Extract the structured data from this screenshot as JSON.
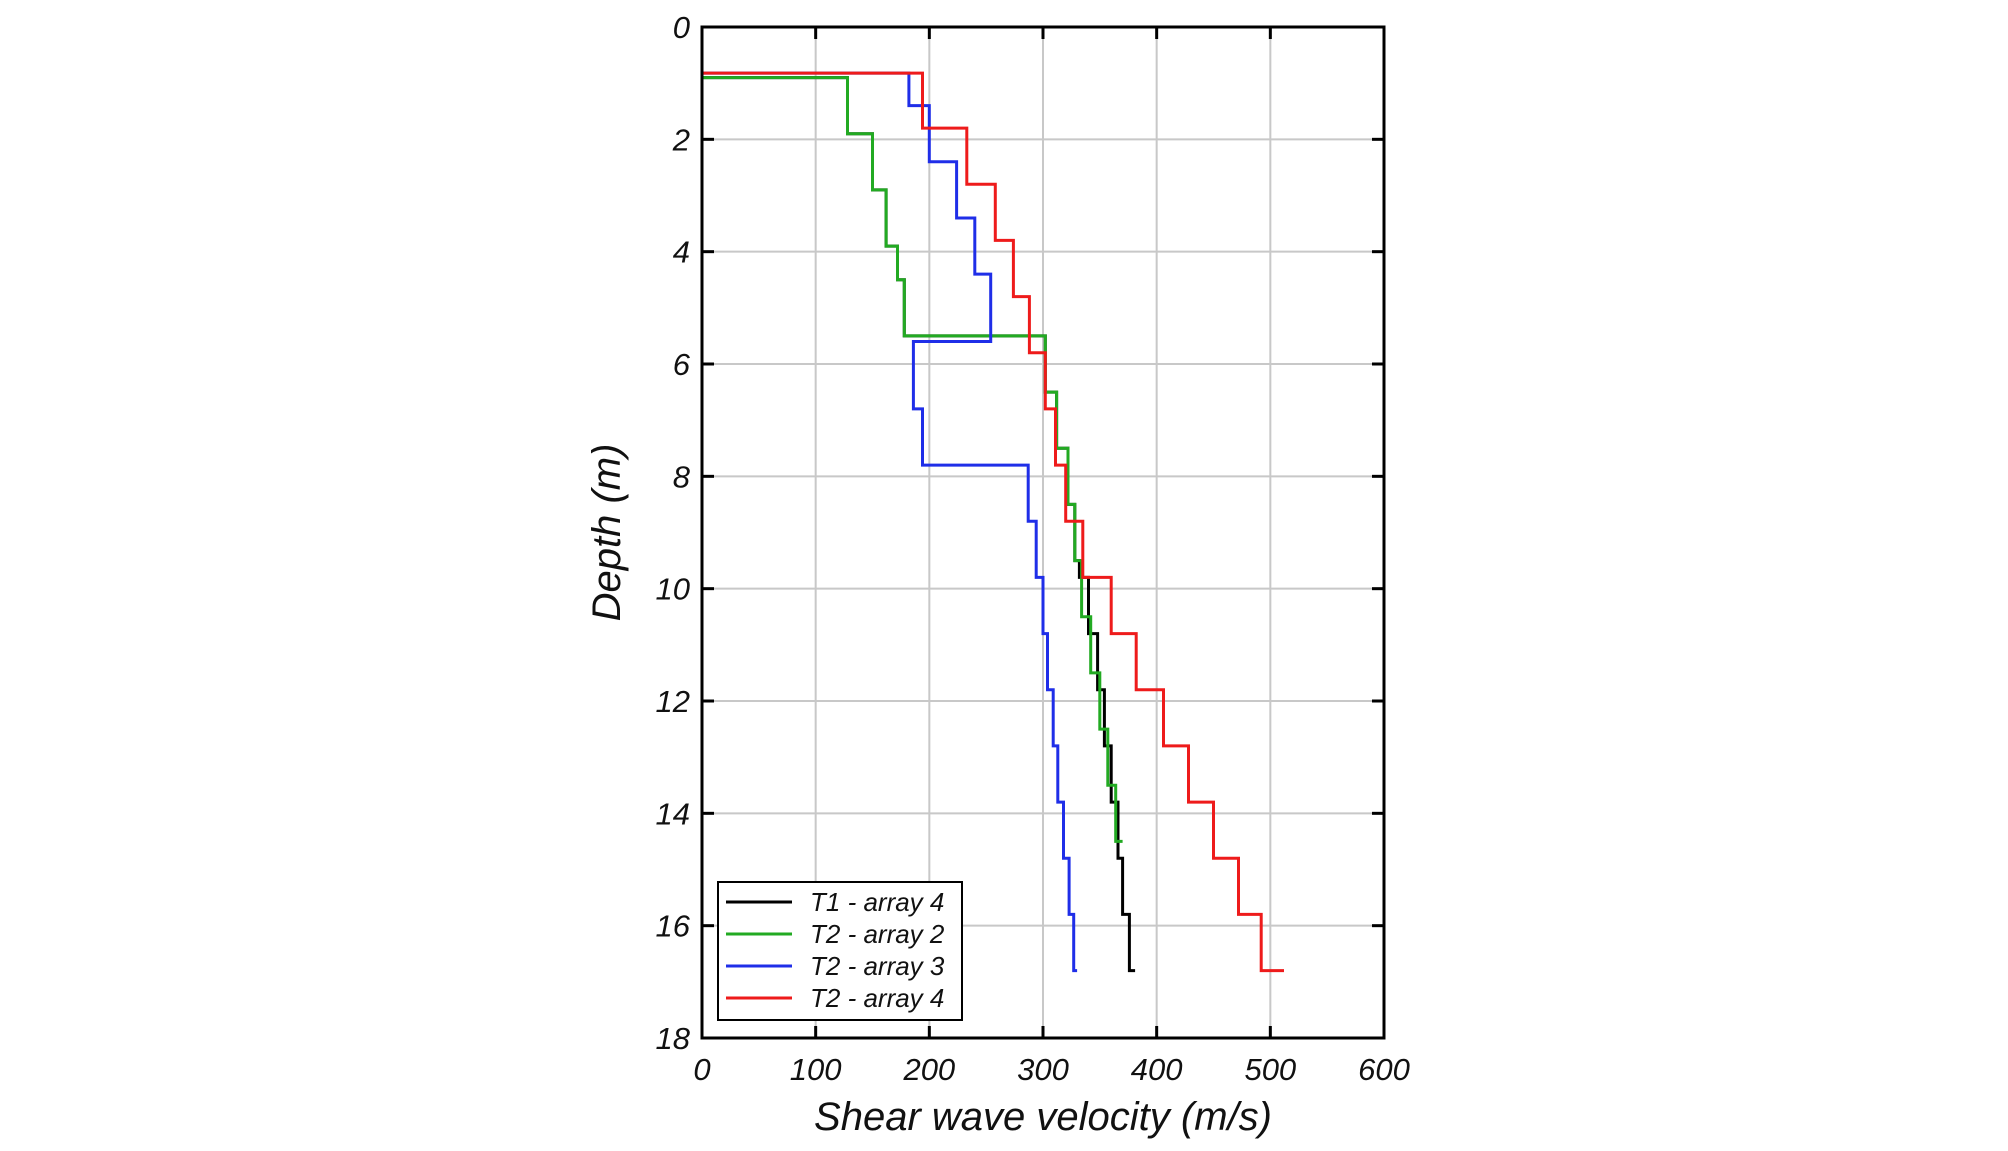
{
  "chart_data": {
    "type": "line",
    "xlabel": "Shear wave velocity (m/s)",
    "ylabel": "Depth (m)",
    "xlim": [
      0,
      600
    ],
    "ylim": [
      0,
      18
    ],
    "y_inverted": true,
    "x_ticks": [
      0,
      100,
      200,
      300,
      400,
      500,
      600
    ],
    "y_ticks": [
      0,
      2,
      4,
      6,
      8,
      10,
      12,
      14,
      16,
      18
    ],
    "grid": true,
    "legend_position": "bottom-left",
    "series": [
      {
        "name": "T1 - array 4",
        "color": "#000000",
        "points": [
          [
            0,
            0
          ],
          [
            0,
            0.9
          ],
          [
            128,
            0.9
          ],
          [
            128,
            1.9
          ],
          [
            150,
            1.9
          ],
          [
            150,
            2.9
          ],
          [
            162,
            2.9
          ],
          [
            162,
            3.9
          ],
          [
            172,
            3.9
          ],
          [
            172,
            4.5
          ],
          [
            178,
            4.5
          ],
          [
            178,
            5.5
          ],
          [
            302,
            5.5
          ],
          [
            302,
            6.5
          ],
          [
            312,
            6.5
          ],
          [
            312,
            7.5
          ],
          [
            322,
            7.5
          ],
          [
            322,
            8.5
          ],
          [
            328,
            8.5
          ],
          [
            328,
            9.5
          ],
          [
            332,
            9.5
          ],
          [
            332,
            9.8
          ],
          [
            340,
            9.8
          ],
          [
            340,
            10.8
          ],
          [
            348,
            10.8
          ],
          [
            348,
            11.8
          ],
          [
            354,
            11.8
          ],
          [
            354,
            12.8
          ],
          [
            360,
            12.8
          ],
          [
            360,
            13.8
          ],
          [
            366,
            13.8
          ],
          [
            366,
            14.8
          ],
          [
            370,
            14.8
          ],
          [
            370,
            15.8
          ],
          [
            376,
            15.8
          ],
          [
            376,
            16.8
          ],
          [
            381,
            16.8
          ]
        ]
      },
      {
        "name": "T2 - array 2",
        "color": "#22aa22",
        "points": [
          [
            0,
            0
          ],
          [
            0,
            0.9
          ],
          [
            128,
            0.9
          ],
          [
            128,
            1.9
          ],
          [
            150,
            1.9
          ],
          [
            150,
            2.9
          ],
          [
            162,
            2.9
          ],
          [
            162,
            3.9
          ],
          [
            172,
            3.9
          ],
          [
            172,
            4.5
          ],
          [
            178,
            4.5
          ],
          [
            178,
            5.5
          ],
          [
            302,
            5.5
          ],
          [
            302,
            6.5
          ],
          [
            312,
            6.5
          ],
          [
            312,
            7.5
          ],
          [
            322,
            7.5
          ],
          [
            322,
            8.5
          ],
          [
            328,
            8.5
          ],
          [
            328,
            9.5
          ],
          [
            334,
            9.5
          ],
          [
            334,
            10.5
          ],
          [
            342,
            10.5
          ],
          [
            342,
            11.5
          ],
          [
            350,
            11.5
          ],
          [
            350,
            12.5
          ],
          [
            357,
            12.5
          ],
          [
            357,
            13.5
          ],
          [
            364,
            13.5
          ],
          [
            364,
            14.5
          ],
          [
            370,
            14.5
          ]
        ]
      },
      {
        "name": "T2 - array 3",
        "color": "#1f2ee8",
        "points": [
          [
            0,
            0
          ],
          [
            0,
            0.82
          ],
          [
            182,
            0.82
          ],
          [
            182,
            1.4
          ],
          [
            200,
            1.4
          ],
          [
            200,
            2.4
          ],
          [
            224,
            2.4
          ],
          [
            224,
            3.4
          ],
          [
            240,
            3.4
          ],
          [
            240,
            4.4
          ],
          [
            254,
            4.4
          ],
          [
            254,
            5.6
          ],
          [
            186,
            5.6
          ],
          [
            186,
            6.8
          ],
          [
            194,
            6.8
          ],
          [
            194,
            7.8
          ],
          [
            287,
            7.8
          ],
          [
            287,
            8.8
          ],
          [
            294,
            8.8
          ],
          [
            294,
            9.8
          ],
          [
            300,
            9.8
          ],
          [
            300,
            10.8
          ],
          [
            304,
            10.8
          ],
          [
            304,
            11.8
          ],
          [
            309,
            11.8
          ],
          [
            309,
            12.8
          ],
          [
            313,
            12.8
          ],
          [
            313,
            13.8
          ],
          [
            318,
            13.8
          ],
          [
            318,
            14.8
          ],
          [
            323,
            14.8
          ],
          [
            323,
            15.8
          ],
          [
            327,
            15.8
          ],
          [
            327,
            16.8
          ],
          [
            330,
            16.8
          ]
        ]
      },
      {
        "name": "T2 - array 4",
        "color": "#ee1b1b",
        "points": [
          [
            0,
            0
          ],
          [
            0,
            0.82
          ],
          [
            194,
            0.82
          ],
          [
            194,
            1.8
          ],
          [
            233,
            1.8
          ],
          [
            233,
            2.8
          ],
          [
            258,
            2.8
          ],
          [
            258,
            3.8
          ],
          [
            274,
            3.8
          ],
          [
            274,
            4.8
          ],
          [
            288,
            4.8
          ],
          [
            288,
            5.8
          ],
          [
            302,
            5.8
          ],
          [
            302,
            6.8
          ],
          [
            311,
            6.8
          ],
          [
            311,
            7.8
          ],
          [
            320,
            7.8
          ],
          [
            320,
            8.8
          ],
          [
            335,
            8.8
          ],
          [
            335,
            9.8
          ],
          [
            360,
            9.8
          ],
          [
            360,
            10.8
          ],
          [
            382,
            10.8
          ],
          [
            382,
            11.8
          ],
          [
            406,
            11.8
          ],
          [
            406,
            12.8
          ],
          [
            428,
            12.8
          ],
          [
            428,
            13.8
          ],
          [
            450,
            13.8
          ],
          [
            450,
            14.8
          ],
          [
            472,
            14.8
          ],
          [
            472,
            15.8
          ],
          [
            492,
            15.8
          ],
          [
            492,
            16.8
          ],
          [
            512,
            16.8
          ]
        ]
      }
    ]
  }
}
